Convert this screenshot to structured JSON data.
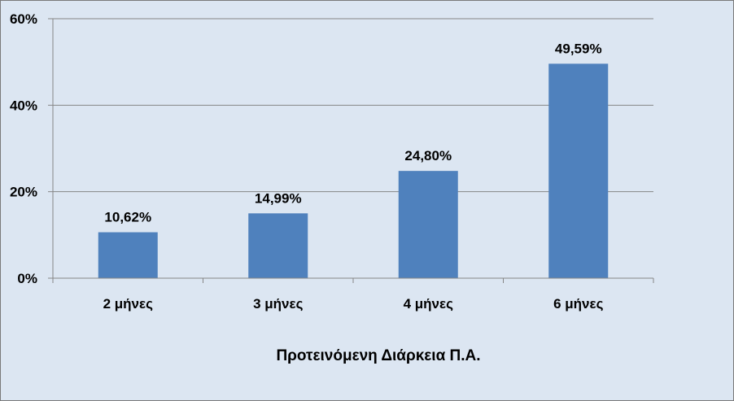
{
  "chart_data": {
    "type": "bar",
    "title": "",
    "xlabel": "Προτεινόμενη Διάρκεια Π.Α.",
    "ylabel": "",
    "categories": [
      "2 μήνες",
      "3 μήνες",
      "4 μήνες",
      "6 μήνες"
    ],
    "values": [
      10.62,
      14.99,
      24.8,
      49.59
    ],
    "data_labels": [
      "10,62%",
      "14,99%",
      "24,80%",
      "49,59%"
    ],
    "ylim": [
      0,
      60
    ],
    "yticks": [
      0,
      20,
      40,
      60
    ],
    "ytick_labels": [
      "0%",
      "20%",
      "40%",
      "60%"
    ],
    "grid": true,
    "legend": "none",
    "colors": {
      "bar": "#4f81bd",
      "plot_background": "#dce6f2",
      "gridline": "#868686",
      "axis": "#868686"
    }
  }
}
